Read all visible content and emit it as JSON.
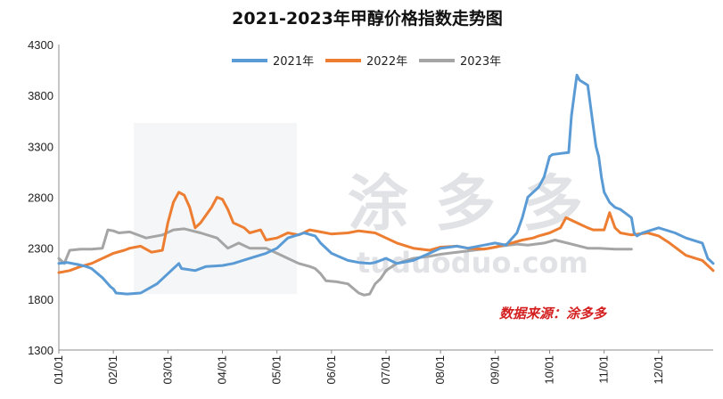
{
  "chart_data": {
    "type": "line",
    "title": "2021-2023年甲醇价格指数走势图",
    "source_text": "数据来源：涂多多",
    "watermark": {
      "chars": "涂多多",
      "domain": "tuduoduo.com"
    },
    "ylim": [
      1300,
      4300
    ],
    "yticks": [
      1300,
      1800,
      2300,
      2800,
      3300,
      3800,
      4300
    ],
    "xlim": [
      0,
      12
    ],
    "xticks": [
      "01/01",
      "02/01",
      "03/01",
      "04/01",
      "05/01",
      "06/01",
      "07/01",
      "08/01",
      "09/01",
      "10/01",
      "11/01",
      "12/01"
    ],
    "grid": false,
    "legend_position": "top-center",
    "colors": {
      "2021年": "#5b9bd5",
      "2022年": "#ed7d31",
      "2023年": "#a5a5a5"
    },
    "series": [
      {
        "name": "2021年",
        "x": [
          0,
          0.15,
          0.35,
          0.5,
          0.6,
          0.8,
          0.95,
          1.0,
          1.05,
          1.25,
          1.5,
          1.8,
          2.0,
          2.2,
          2.25,
          2.5,
          2.7,
          3.0,
          3.2,
          3.5,
          3.8,
          4.0,
          4.2,
          4.5,
          4.7,
          4.8,
          5.0,
          5.3,
          5.5,
          5.7,
          5.8,
          6.0,
          6.2,
          6.5,
          6.8,
          7.0,
          7.3,
          7.5,
          7.8,
          8.0,
          8.2,
          8.4,
          8.5,
          8.6,
          8.7,
          8.8,
          8.9,
          8.95,
          9.0,
          9.05,
          9.2,
          9.35,
          9.4,
          9.45,
          9.5,
          9.55,
          9.7,
          9.8,
          9.85,
          9.9,
          9.95,
          10.0,
          10.1,
          10.2,
          10.3,
          10.5,
          10.55,
          10.6,
          10.7,
          11.0,
          11.3,
          11.5,
          11.8,
          11.9,
          12.0
        ],
        "values": [
          2150,
          2160,
          2140,
          2120,
          2100,
          2010,
          1920,
          1900,
          1860,
          1850,
          1860,
          1950,
          2050,
          2150,
          2100,
          2080,
          2120,
          2130,
          2150,
          2200,
          2250,
          2300,
          2400,
          2450,
          2420,
          2350,
          2250,
          2180,
          2160,
          2150,
          2160,
          2200,
          2150,
          2180,
          2250,
          2300,
          2320,
          2300,
          2330,
          2350,
          2330,
          2450,
          2600,
          2800,
          2850,
          2900,
          3000,
          3100,
          3200,
          3220,
          3230,
          3240,
          3600,
          3800,
          4000,
          3950,
          3900,
          3500,
          3300,
          3200,
          3000,
          2850,
          2750,
          2700,
          2680,
          2600,
          2450,
          2420,
          2450,
          2500,
          2450,
          2400,
          2350,
          2200,
          2150
        ]
      },
      {
        "name": "2022年",
        "x": [
          0,
          0.2,
          0.4,
          0.6,
          0.8,
          1.0,
          1.2,
          1.3,
          1.5,
          1.7,
          1.9,
          2.0,
          2.1,
          2.2,
          2.3,
          2.4,
          2.5,
          2.6,
          2.8,
          2.9,
          3.0,
          3.1,
          3.2,
          3.4,
          3.5,
          3.7,
          3.8,
          4.0,
          4.2,
          4.4,
          4.6,
          4.8,
          5.0,
          5.3,
          5.5,
          5.8,
          6.0,
          6.2,
          6.5,
          6.8,
          7.0,
          7.3,
          7.5,
          7.8,
          8.0,
          8.3,
          8.5,
          8.7,
          8.8,
          9.0,
          9.2,
          9.3,
          9.5,
          9.7,
          9.8,
          10.0,
          10.1,
          10.2,
          10.3,
          10.5,
          10.8,
          11.0,
          11.2,
          11.5,
          11.8,
          12.0
        ],
        "values": [
          2060,
          2080,
          2120,
          2150,
          2200,
          2250,
          2280,
          2300,
          2320,
          2260,
          2280,
          2550,
          2750,
          2850,
          2820,
          2700,
          2500,
          2550,
          2700,
          2800,
          2780,
          2680,
          2550,
          2500,
          2450,
          2480,
          2380,
          2400,
          2450,
          2430,
          2480,
          2460,
          2440,
          2450,
          2470,
          2450,
          2400,
          2350,
          2300,
          2280,
          2310,
          2320,
          2300,
          2290,
          2310,
          2350,
          2380,
          2400,
          2420,
          2450,
          2500,
          2600,
          2550,
          2500,
          2480,
          2480,
          2650,
          2500,
          2450,
          2430,
          2450,
          2420,
          2350,
          2230,
          2180,
          2080
        ]
      },
      {
        "name": "2023年",
        "x": [
          0,
          0.1,
          0.2,
          0.4,
          0.6,
          0.8,
          0.9,
          1.0,
          1.1,
          1.3,
          1.6,
          1.9,
          2.1,
          2.3,
          2.6,
          2.9,
          3.1,
          3.3,
          3.5,
          3.8,
          4.0,
          4.2,
          4.4,
          4.6,
          4.7,
          4.8,
          4.9,
          5.1,
          5.3,
          5.5,
          5.6,
          5.7,
          5.8,
          5.9,
          6.0,
          6.2,
          6.5,
          6.8,
          7.0,
          7.3,
          7.6,
          7.9,
          8.1,
          8.4,
          8.6,
          8.9,
          9.1,
          9.4,
          9.7,
          9.9,
          10.2,
          10.5
        ],
        "values": [
          2200,
          2150,
          2280,
          2290,
          2290,
          2300,
          2480,
          2470,
          2450,
          2460,
          2400,
          2430,
          2480,
          2490,
          2450,
          2400,
          2300,
          2350,
          2300,
          2300,
          2250,
          2200,
          2150,
          2120,
          2100,
          2050,
          1980,
          1970,
          1950,
          1860,
          1840,
          1850,
          1950,
          2000,
          2080,
          2150,
          2200,
          2220,
          2240,
          2260,
          2280,
          2300,
          2320,
          2340,
          2330,
          2350,
          2380,
          2340,
          2300,
          2300,
          2290,
          2290
        ]
      }
    ]
  }
}
